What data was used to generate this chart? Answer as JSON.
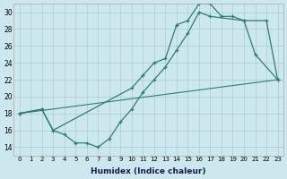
{
  "xlabel": "Humidex (Indice chaleur)",
  "bg_color": "#cce8ee",
  "grid_color": "#aaccd4",
  "line_color": "#2e7d6e",
  "xlim": [
    -0.5,
    23.5
  ],
  "ylim": [
    13,
    31
  ],
  "xticks": [
    0,
    1,
    2,
    3,
    4,
    5,
    6,
    7,
    8,
    9,
    10,
    11,
    12,
    13,
    14,
    15,
    16,
    17,
    18,
    19,
    20,
    21,
    22,
    23
  ],
  "yticks": [
    14,
    16,
    18,
    20,
    22,
    24,
    26,
    28,
    30
  ],
  "line1_x": [
    0,
    2,
    3,
    4,
    5,
    6,
    7,
    8,
    9,
    10,
    11,
    12,
    13,
    14,
    15,
    16,
    17,
    20,
    22,
    23
  ],
  "line1_y": [
    18.0,
    18.5,
    16.0,
    15.5,
    14.5,
    14.5,
    14.0,
    15.0,
    17.0,
    18.5,
    20.5,
    22.0,
    23.5,
    25.5,
    27.5,
    30.0,
    29.5,
    29.0,
    29.0,
    22.0
  ],
  "line2_x": [
    0,
    2,
    3,
    10,
    11,
    12,
    13,
    14,
    15,
    16,
    17,
    18,
    19,
    20,
    21,
    23
  ],
  "line2_y": [
    18.0,
    18.5,
    16.0,
    21.0,
    22.5,
    24.0,
    24.5,
    28.5,
    29.0,
    31.0,
    31.0,
    29.5,
    29.5,
    29.0,
    25.0,
    22.0
  ],
  "line3_x": [
    0,
    23
  ],
  "line3_y": [
    18.0,
    22.0
  ]
}
